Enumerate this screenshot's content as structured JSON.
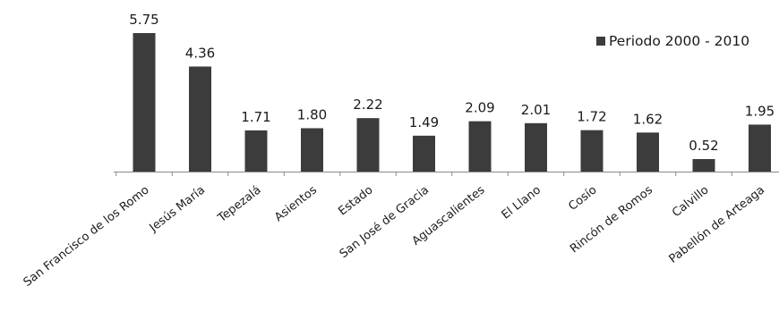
{
  "chart_data": {
    "type": "bar",
    "categories": [
      "San Francisco de los Romo",
      "Jesús María",
      "Tepezalá",
      "Asientos",
      "Estado",
      "San José de Gracia",
      "Aguascalientes",
      "El Llano",
      "Cosío",
      "Rincón de Romos",
      "Calvillo",
      "Pabellón de Arteaga"
    ],
    "series": [
      {
        "name": "Periodo 2000 - 2010",
        "values": [
          5.75,
          4.36,
          1.71,
          1.8,
          2.22,
          1.49,
          2.09,
          2.01,
          1.72,
          1.62,
          0.52,
          1.95
        ],
        "labels": [
          "5.75",
          "4.36",
          "1.71",
          "1.80",
          "2.22",
          "1.49",
          "2.09",
          "2.01",
          "1.72",
          "1.62",
          "0.52",
          "1.95"
        ]
      }
    ],
    "ylim": [
      0,
      5.75
    ],
    "grid": false,
    "legend_position": "top-right",
    "bar_color": "#3c3c3c",
    "axis_color": "#888888"
  }
}
